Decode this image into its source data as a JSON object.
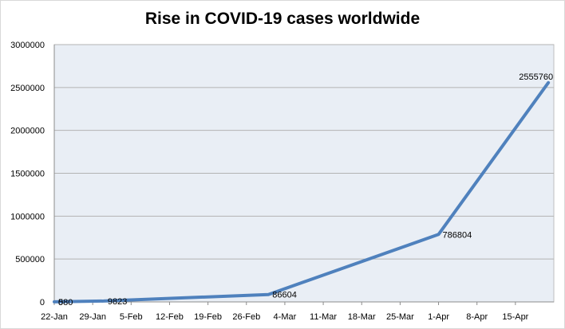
{
  "chart_data": {
    "type": "line",
    "title": "Rise in COVID-19 cases worldwide",
    "xlabel": "",
    "ylabel": "",
    "x_tick_labels": [
      "22-Jan",
      "29-Jan",
      "5-Feb",
      "12-Feb",
      "19-Feb",
      "26-Feb",
      "4-Mar",
      "11-Mar",
      "18-Mar",
      "25-Mar",
      "1-Apr",
      "8-Apr",
      "15-Apr"
    ],
    "y_tick_labels": [
      "0",
      "500000",
      "1000000",
      "1500000",
      "2000000",
      "2500000",
      "3000000"
    ],
    "ylim": [
      0,
      3000000
    ],
    "xlim": [
      "22-Jan",
      "22-Apr"
    ],
    "grid": true,
    "legend": "none",
    "line_color": "#4f81bd",
    "plot_background": "#e9eef5",
    "series": [
      {
        "points": [
          {
            "x": "22-Jan",
            "y": 580,
            "label": "580"
          },
          {
            "x": "22-Jan",
            "y": 0,
            "label": "0"
          },
          {
            "x": "31-Jan",
            "y": 9823,
            "label": "9823"
          },
          {
            "x": "1-Mar",
            "y": 86604,
            "label": "86604"
          },
          {
            "x": "1-Apr",
            "y": 786804,
            "label": "786804"
          },
          {
            "x": "21-Apr",
            "y": 2555760,
            "label": "2555760"
          }
        ]
      }
    ]
  }
}
